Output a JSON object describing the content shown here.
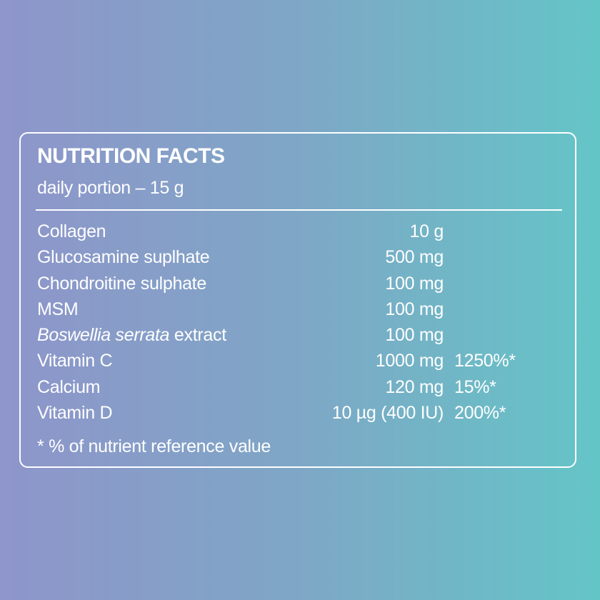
{
  "panel": {
    "title": "NUTRITION FACTS",
    "subtitle": "daily portion – 15 g",
    "footnote": "* % of nutrient reference value"
  },
  "rows": [
    {
      "name": "Collagen",
      "amount": "10 g",
      "percent": ""
    },
    {
      "name": "Glucosamine suplhate",
      "amount": "500 mg",
      "percent": ""
    },
    {
      "name": "Chondroitine sulphate",
      "amount": "100 mg",
      "percent": ""
    },
    {
      "name": "MSM",
      "amount": "100 mg",
      "percent": ""
    },
    {
      "name_italic": "Boswellia serrata",
      "name_rest": " extract",
      "amount": "100 mg",
      "percent": ""
    },
    {
      "name": "Vitamin C",
      "amount": "1000 mg",
      "percent": "1250%*"
    },
    {
      "name": "Calcium",
      "amount": "120 mg",
      "percent": "15%*"
    },
    {
      "name": "Vitamin D",
      "amount": "10 µg (400 IU)",
      "percent": "200%*"
    }
  ],
  "colors": {
    "gradient_left": "#8e95ca",
    "gradient_right": "#64c5c7",
    "text": "#ffffff"
  }
}
